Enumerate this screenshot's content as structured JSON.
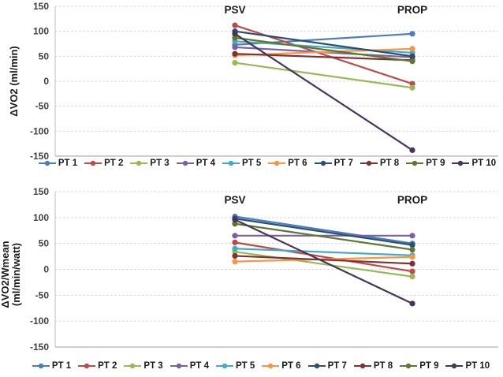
{
  "chart_data": [
    {
      "type": "line",
      "title": "",
      "ylabel": "ΔVO2 (ml/min)",
      "ylabel_lines": [
        "ΔVO2 (ml/min)"
      ],
      "xlabel": "",
      "categories": [
        "PSV",
        "PROP"
      ],
      "ylim": [
        -150,
        150
      ],
      "yticks": [
        150,
        100,
        50,
        0,
        -50,
        -100,
        -150
      ],
      "grid": true,
      "legend_position": "bottom",
      "series": [
        {
          "name": "PT 1",
          "color": "#4A7EBB",
          "values": [
            73,
            95
          ]
        },
        {
          "name": "PT 2",
          "color": "#BE4B48",
          "values": [
            112,
            -5
          ]
        },
        {
          "name": "PT 3",
          "color": "#98B954",
          "values": [
            37,
            -13
          ]
        },
        {
          "name": "PT 4",
          "color": "#7D60A0",
          "values": [
            68,
            48
          ]
        },
        {
          "name": "PT 5",
          "color": "#46AAC5",
          "values": [
            80,
            57
          ]
        },
        {
          "name": "PT 6",
          "color": "#F79646",
          "values": [
            52,
            65
          ]
        },
        {
          "name": "PT 7",
          "color": "#2C4D75",
          "values": [
            100,
            50
          ]
        },
        {
          "name": "PT 8",
          "color": "#7E3231",
          "values": [
            55,
            42
          ]
        },
        {
          "name": "PT 9",
          "color": "#5F7530",
          "values": [
            87,
            40
          ]
        },
        {
          "name": "PT 10",
          "color": "#473657",
          "values": [
            95,
            -138
          ]
        }
      ]
    },
    {
      "type": "line",
      "title": "",
      "ylabel": "ΔVO2/Wmean (ml/min/watt)",
      "ylabel_lines": [
        "ΔVO2/Wmean",
        "(ml/min/watt)"
      ],
      "xlabel": "",
      "categories": [
        "PSV",
        "PROP"
      ],
      "ylim": [
        -150,
        150
      ],
      "yticks": [
        150,
        100,
        50,
        0,
        -50,
        -100,
        -150
      ],
      "grid": true,
      "legend_position": "bottom",
      "series": [
        {
          "name": "PT 1",
          "color": "#4A7EBB",
          "values": [
            102,
            50
          ]
        },
        {
          "name": "PT 2",
          "color": "#BE4B48",
          "values": [
            52,
            -4
          ]
        },
        {
          "name": "PT 3",
          "color": "#98B954",
          "values": [
            34,
            -14
          ]
        },
        {
          "name": "PT 4",
          "color": "#7D60A0",
          "values": [
            65,
            65
          ]
        },
        {
          "name": "PT 5",
          "color": "#46AAC5",
          "values": [
            40,
            27
          ]
        },
        {
          "name": "PT 6",
          "color": "#F79646",
          "values": [
            15,
            24
          ]
        },
        {
          "name": "PT 7",
          "color": "#2C4D75",
          "values": [
            98,
            47
          ]
        },
        {
          "name": "PT 8",
          "color": "#7E3231",
          "values": [
            26,
            11
          ]
        },
        {
          "name": "PT 9",
          "color": "#5F7530",
          "values": [
            88,
            38
          ]
        },
        {
          "name": "PT 10",
          "color": "#473657",
          "values": [
            96,
            -66
          ]
        }
      ]
    }
  ],
  "styles": {
    "gridline_color": "#d9d9d9",
    "axis_line_color": "#bfbfbf",
    "bottom_axis_color": "#9a9a9a",
    "tick_label_color": "#404040",
    "header_label_color": "#1a1a1a"
  }
}
